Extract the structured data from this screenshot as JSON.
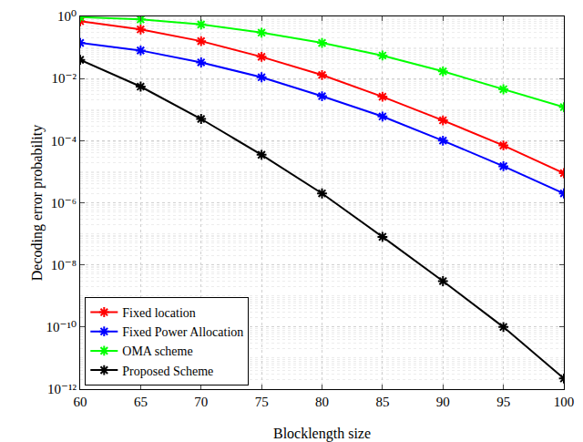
{
  "chart_data": {
    "type": "line",
    "x_label": "Blocklength size",
    "y_label": "Decoding error probability",
    "x": [
      60,
      65,
      70,
      75,
      80,
      85,
      90,
      95,
      100
    ],
    "series": [
      {
        "name": "Fixed location",
        "color": "#ff0000",
        "marker": "asterisk",
        "values": [
          0.7,
          0.38,
          0.16,
          0.05,
          0.013,
          0.0026,
          0.00045,
          7e-05,
          9e-06
        ]
      },
      {
        "name": "Fixed Power Allocation",
        "color": "#0000ff",
        "marker": "asterisk",
        "values": [
          0.14,
          0.08,
          0.033,
          0.011,
          0.0027,
          0.0006,
          0.0001,
          1.5e-05,
          2e-06
        ]
      },
      {
        "name": "OMA scheme",
        "color": "#00ff00",
        "marker": "asterisk",
        "values": [
          0.95,
          0.8,
          0.55,
          0.3,
          0.14,
          0.055,
          0.017,
          0.0045,
          0.0012
        ]
      },
      {
        "name": "Proposed Scheme",
        "color": "#000000",
        "marker": "asterisk",
        "values": [
          0.04,
          0.0055,
          0.0005,
          3.5e-05,
          2e-06,
          8e-08,
          3e-09,
          1e-10,
          2.2e-12
        ]
      }
    ],
    "xlim": [
      60,
      100
    ],
    "xticks": [
      60,
      65,
      70,
      75,
      80,
      85,
      90,
      95,
      100
    ],
    "ylim": [
      1e-12,
      1
    ],
    "yticks": [
      {
        "value": 1,
        "label": "10⁰"
      },
      {
        "value": 0.01,
        "label": "10⁻²"
      },
      {
        "value": 0.0001,
        "label": "10⁻⁴"
      },
      {
        "value": 1e-06,
        "label": "10⁻⁶"
      },
      {
        "value": 1e-08,
        "label": "10⁻⁸"
      },
      {
        "value": 1e-10,
        "label": "10⁻¹⁰"
      },
      {
        "value": 1e-12,
        "label": "10⁻¹²"
      }
    ],
    "log": "y",
    "grid": true,
    "legend": "bottom-left"
  }
}
